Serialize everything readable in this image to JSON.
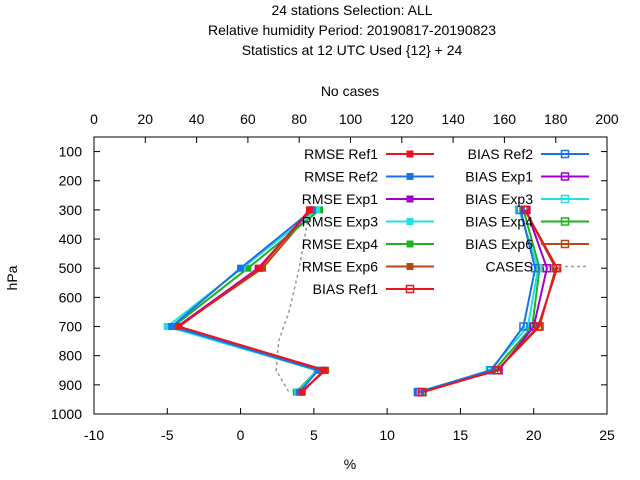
{
  "chart_data": {
    "type": "line",
    "title": [
      "24 stations Selection: ALL",
      "Relative humidity  Period: 20190817-20190823",
      "Statistics at 12 UTC  Used {12} + 24"
    ],
    "xlabel": "%",
    "ylabel": "hPa",
    "x2label": "No cases",
    "xlim": [
      -10,
      25
    ],
    "x2lim": [
      0,
      200
    ],
    "ylim": [
      1000,
      50
    ],
    "y_inverted": true,
    "xticks": [
      "-10",
      "-5",
      "0",
      "5",
      "10",
      "15",
      "20",
      "25"
    ],
    "x2ticks": [
      "0",
      "20",
      "40",
      "60",
      "80",
      "100",
      "120",
      "140",
      "160",
      "180",
      "200"
    ],
    "yticks": [
      "100",
      "200",
      "300",
      "400",
      "500",
      "600",
      "700",
      "800",
      "900",
      "1000"
    ],
    "legend_position": "top-right",
    "levels": [
      300,
      500,
      700,
      850,
      925
    ],
    "series": [
      {
        "name": "RMSE Ref1",
        "color": "#e8151f",
        "marker": "filled",
        "values": [
          4.7,
          1.3,
          -4.2,
          5.7,
          4.2
        ]
      },
      {
        "name": "RMSE Ref2",
        "color": "#1a74e6",
        "marker": "filled",
        "values": [
          4.9,
          0.0,
          -4.7,
          5.3,
          4.0
        ]
      },
      {
        "name": "RMSE Exp1",
        "color": "#a100d0",
        "marker": "filled",
        "values": [
          4.8,
          1.2,
          -4.3,
          5.7,
          4.2
        ]
      },
      {
        "name": "RMSE Exp3",
        "color": "#20e0e0",
        "marker": "filled",
        "values": [
          5.2,
          0.1,
          -5.0,
          5.2,
          3.9
        ]
      },
      {
        "name": "RMSE Exp4",
        "color": "#20b020",
        "marker": "filled",
        "values": [
          5.4,
          0.5,
          -4.6,
          5.2,
          3.8
        ]
      },
      {
        "name": "RMSE Exp6",
        "color": "#b24a12",
        "marker": "filled",
        "values": [
          4.9,
          1.5,
          -4.3,
          5.8,
          4.1
        ]
      },
      {
        "name": "BIAS Ref1",
        "color": "#e8151f",
        "marker": "open",
        "values": [
          19.4,
          21.6,
          20.3,
          17.5,
          12.4
        ]
      },
      {
        "name": "BIAS Ref2",
        "color": "#1a74e6",
        "marker": "open",
        "values": [
          19.1,
          20.1,
          19.3,
          17.1,
          12.1
        ]
      },
      {
        "name": "BIAS Exp1",
        "color": "#a100d0",
        "marker": "open",
        "values": [
          19.5,
          20.9,
          20.0,
          17.6,
          12.2
        ]
      },
      {
        "name": "BIAS Exp3",
        "color": "#20e0e0",
        "marker": "open",
        "values": [
          19.0,
          20.3,
          19.6,
          17.0,
          12.3
        ]
      },
      {
        "name": "BIAS Exp4",
        "color": "#20b020",
        "marker": "open",
        "values": [
          19.3,
          20.4,
          19.9,
          17.3,
          12.4
        ]
      },
      {
        "name": "BIAS Exp6",
        "color": "#b24a12",
        "marker": "open",
        "values": [
          19.4,
          21.5,
          20.4,
          17.5,
          12.4
        ]
      }
    ],
    "cases": {
      "name": "CASES",
      "color": "#999999",
      "axis": "x2",
      "pressures": [
        300,
        400,
        500,
        650,
        750,
        850,
        925
      ],
      "values": [
        84,
        82,
        80,
        76,
        72,
        71,
        76
      ]
    }
  }
}
